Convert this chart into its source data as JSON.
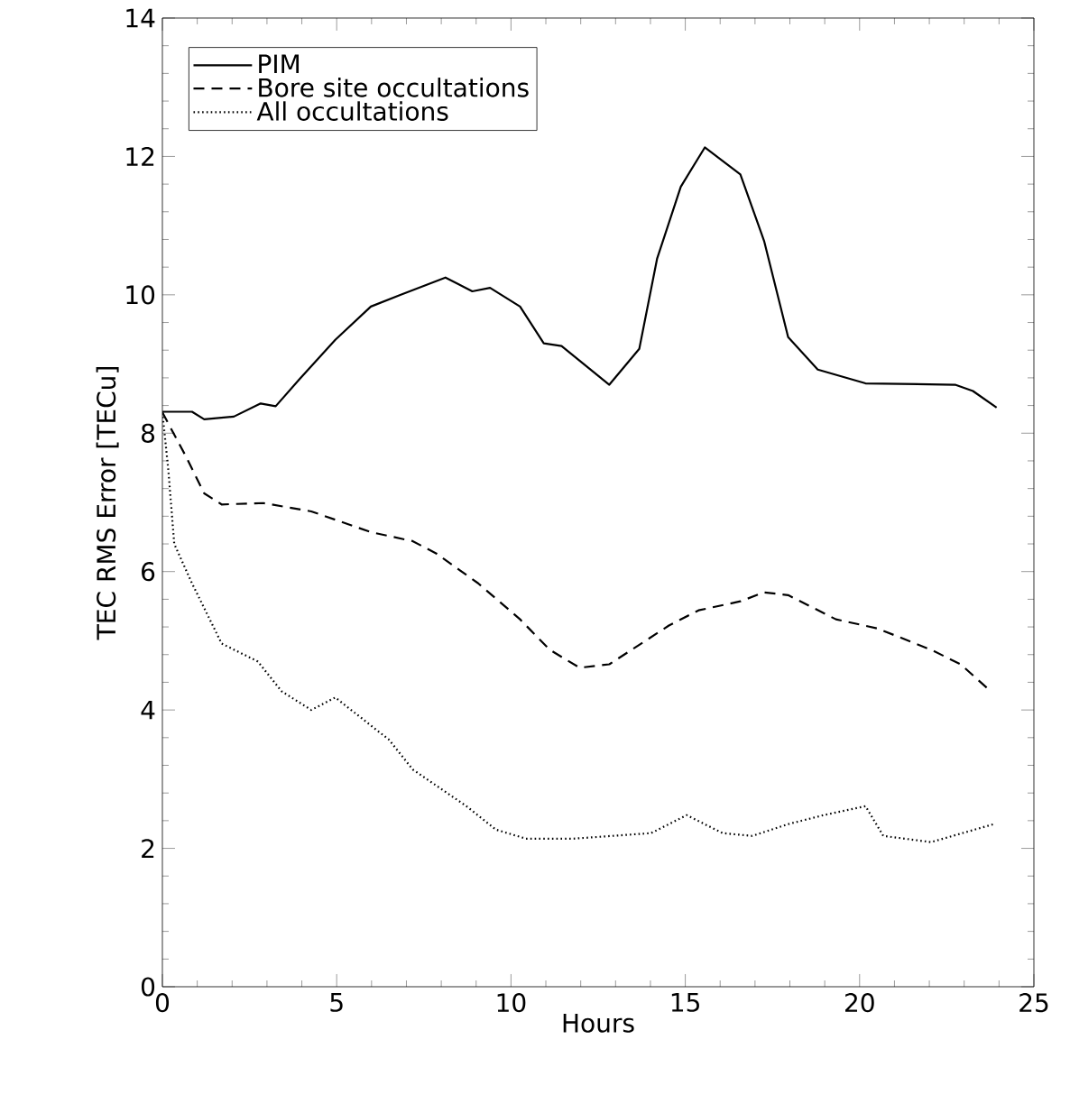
{
  "chart_data": {
    "type": "line",
    "xlabel": "Hours",
    "ylabel": "TEC RMS Error [TECu]",
    "xlim": [
      0,
      25
    ],
    "xticks": [
      0,
      5,
      10,
      15,
      20,
      25
    ],
    "ylim": [
      0,
      14
    ],
    "yticks": [
      0,
      2,
      4,
      6,
      8,
      10,
      12,
      14
    ],
    "grid": false,
    "legend": "top left",
    "marker": "none",
    "series": [
      {
        "name": "PIM",
        "color": "#000000",
        "line_style": "solid",
        "x": [
          0,
          0.85,
          1.2,
          2.05,
          2.82,
          3.25,
          3.93,
          4.96,
          5.98,
          6.84,
          8.12,
          8.89,
          9.4,
          10.26,
          10.94,
          11.45,
          12.82,
          13.68,
          14.19,
          14.87,
          15.56,
          16.58,
          17.26,
          17.95,
          18.8,
          20.17,
          22.74,
          23.25,
          23.93
        ],
        "values": [
          8.31,
          8.31,
          8.2,
          8.24,
          8.43,
          8.39,
          8.78,
          9.35,
          9.83,
          10.0,
          10.25,
          10.05,
          10.1,
          9.83,
          9.3,
          9.26,
          8.7,
          9.22,
          10.52,
          11.56,
          12.13,
          11.74,
          10.78,
          9.39,
          8.92,
          8.72,
          8.7,
          8.61,
          8.37
        ]
      },
      {
        "name": "Bore site occultations",
        "color": "#000000",
        "line_style": "dashed",
        "x": [
          0,
          0.68,
          1.2,
          1.7,
          2.9,
          4.27,
          5.98,
          7.18,
          7.86,
          9.06,
          10.26,
          11.11,
          11.97,
          12.82,
          14.53,
          15.38,
          16.58,
          17.26,
          17.95,
          19.32,
          20.5,
          22.05,
          22.9,
          23.76
        ],
        "values": [
          8.3,
          7.66,
          7.13,
          6.97,
          6.99,
          6.87,
          6.57,
          6.44,
          6.26,
          5.83,
          5.31,
          4.87,
          4.61,
          4.66,
          5.22,
          5.44,
          5.57,
          5.7,
          5.66,
          5.31,
          5.18,
          4.87,
          4.66,
          4.27
        ]
      },
      {
        "name": "All occultations",
        "color": "#000000",
        "line_style": "dotted",
        "x": [
          0,
          0.17,
          0.34,
          0.85,
          1.7,
          2.74,
          3.42,
          4.27,
          4.96,
          6.5,
          7.18,
          8.72,
          9.57,
          10.43,
          11.79,
          14.02,
          15.04,
          16.07,
          16.92,
          17.95,
          18.97,
          20.17,
          20.68,
          22.05,
          23.85
        ],
        "values": [
          8.3,
          7.47,
          6.4,
          5.83,
          4.96,
          4.7,
          4.27,
          4.0,
          4.18,
          3.57,
          3.14,
          2.61,
          2.27,
          2.14,
          2.14,
          2.22,
          2.48,
          2.22,
          2.18,
          2.35,
          2.48,
          2.61,
          2.18,
          2.09,
          2.35
        ]
      }
    ]
  }
}
